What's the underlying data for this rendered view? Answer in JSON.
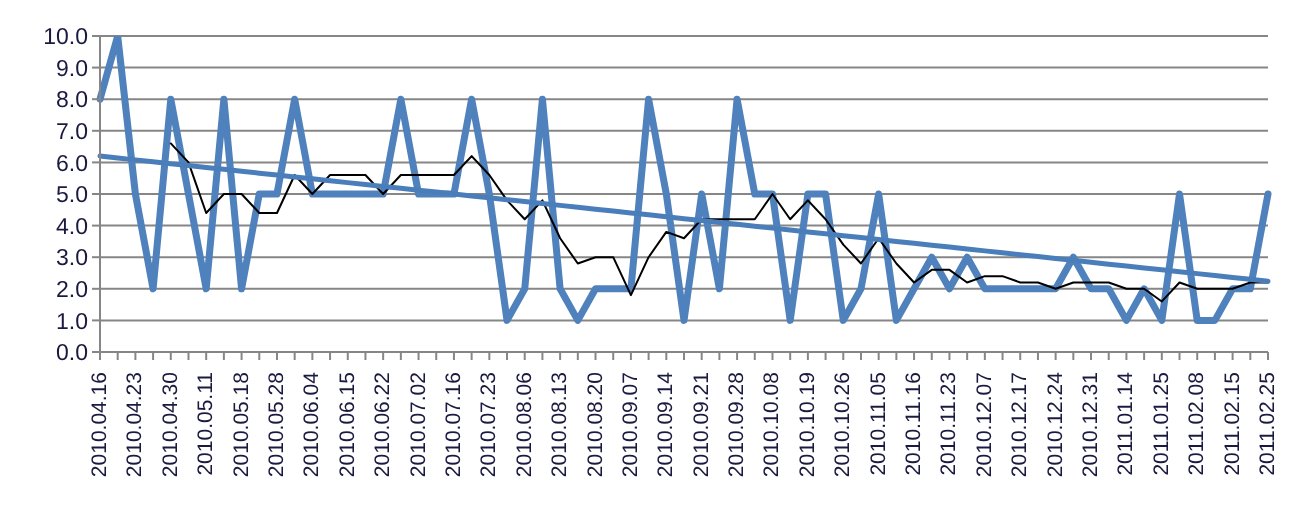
{
  "chart_data": {
    "type": "line",
    "categories": [
      "2010.04.16",
      null,
      "2010.04.23",
      null,
      "2010.04.30",
      null,
      "2010.05.11",
      null,
      "2010.05.18",
      null,
      "2010.05.28",
      null,
      "2010.06.04",
      null,
      "2010.06.15",
      null,
      "2010.06.22",
      null,
      "2010.07.02",
      null,
      "2010.07.16",
      null,
      "2010.07.23",
      null,
      "2010.08.06",
      null,
      "2010.08.13",
      null,
      "2010.08.20",
      null,
      "2010.09.07",
      null,
      "2010.09.14",
      null,
      "2010.09.21",
      null,
      "2010.09.28",
      null,
      "2010.10.08",
      null,
      "2010.10.19",
      null,
      "2010.10.26",
      null,
      "2010.11.05",
      null,
      "2010.11.16",
      null,
      "2010.11.23",
      null,
      "2010.12.07",
      null,
      "2010.12.17",
      null,
      "2010.12.24",
      null,
      "2010.12.31",
      null,
      "2011.01.14",
      null,
      "2011.01.25",
      null,
      "2011.02.08",
      null,
      "2011.02.15",
      null,
      "2011.02.25"
    ],
    "series": [
      {
        "color": "#4f81bd",
        "values": [
          8,
          10,
          5,
          2,
          8,
          5,
          2,
          8,
          2,
          5,
          5,
          8,
          5,
          5,
          5,
          5,
          5,
          8,
          5,
          5,
          5,
          8,
          5,
          1,
          2,
          8,
          2,
          1,
          2,
          2,
          2,
          8,
          5,
          1,
          5,
          2,
          8,
          5,
          5,
          1,
          5,
          5,
          1,
          2,
          5,
          1,
          2,
          3,
          2,
          3,
          2,
          2,
          2,
          2,
          2,
          3,
          2,
          2,
          1,
          2,
          1,
          5,
          1,
          1,
          2,
          2,
          5
        ]
      },
      {
        "color": "#000000",
        "values": [
          null,
          null,
          null,
          null,
          6.6,
          6.0,
          4.4,
          5.0,
          5.0,
          4.4,
          4.4,
          5.6,
          5.0,
          5.6,
          5.6,
          5.6,
          5.0,
          5.6,
          5.6,
          5.6,
          5.6,
          6.2,
          5.6,
          4.8,
          4.2,
          4.8,
          3.6,
          2.8,
          3.0,
          3.0,
          1.8,
          3.0,
          3.8,
          3.6,
          4.2,
          4.2,
          4.2,
          4.2,
          5.0,
          4.2,
          4.8,
          4.2,
          3.4,
          2.8,
          3.6,
          2.8,
          2.2,
          2.6,
          2.6,
          2.2,
          2.4,
          2.4,
          2.2,
          2.2,
          2.0,
          2.2,
          2.2,
          2.2,
          2.0,
          2.0,
          1.6,
          2.2,
          2.0,
          2.0,
          2.0,
          2.2,
          2.2
        ]
      },
      {
        "color": "#4a7ebb",
        "values": [
          6.2,
          6.14,
          6.08,
          6.02,
          5.96,
          5.9,
          5.84,
          5.78,
          5.72,
          5.66,
          5.6,
          5.54,
          5.48,
          5.42,
          5.36,
          5.3,
          5.24,
          5.18,
          5.12,
          5.06,
          5.0,
          4.94,
          4.88,
          4.82,
          4.76,
          4.7,
          4.64,
          4.58,
          4.52,
          4.46,
          4.4,
          4.34,
          4.28,
          4.22,
          4.16,
          4.1,
          4.04,
          3.98,
          3.92,
          3.86,
          3.8,
          3.74,
          3.68,
          3.62,
          3.56,
          3.5,
          3.44,
          3.38,
          3.32,
          3.26,
          3.2,
          3.14,
          3.08,
          3.02,
          2.96,
          2.9,
          2.84,
          2.78,
          2.72,
          2.66,
          2.6,
          2.54,
          2.48,
          2.42,
          2.36,
          2.3,
          2.24
        ]
      }
    ],
    "ylim": [
      0,
      10
    ],
    "yticks": [
      {
        "value": 0,
        "label": "0.0"
      },
      {
        "value": 1,
        "label": "1.0"
      },
      {
        "value": 2,
        "label": "2.0"
      },
      {
        "value": 3,
        "label": "3.0"
      },
      {
        "value": 4,
        "label": "4.0"
      },
      {
        "value": 5,
        "label": "5.0"
      },
      {
        "value": 6,
        "label": "6.0"
      },
      {
        "value": 7,
        "label": "7.0"
      },
      {
        "value": 8,
        "label": "8.0"
      },
      {
        "value": 9,
        "label": "9.0"
      },
      {
        "value": 10,
        "label": "10.0"
      }
    ],
    "grid": "y",
    "marker": "none",
    "line_style": "solid"
  }
}
